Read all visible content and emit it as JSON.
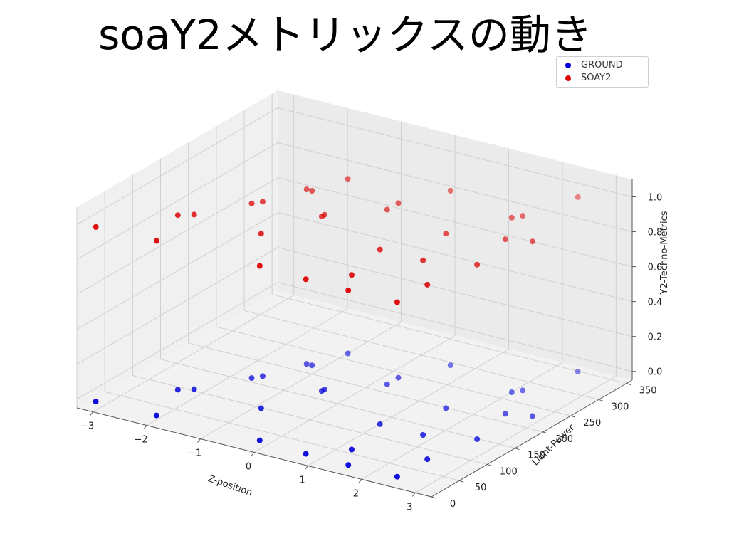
{
  "chart_data": {
    "type": "scatter",
    "title": "soaY2メトリックスの動き",
    "xlabel": "Z-position",
    "ylabel": "Lidht-Power",
    "zlabel": "Y2-Techno-Metrics",
    "xlim": [
      -3.3,
      3.3
    ],
    "ylim": [
      0,
      360
    ],
    "zlim": [
      -0.05,
      1.1
    ],
    "xticks": [
      "−3",
      "−2",
      "−1",
      "0",
      "1",
      "2",
      "3"
    ],
    "yticks": [
      "0",
      "50",
      "100",
      "150",
      "200",
      "250",
      "300",
      "350"
    ],
    "zticks": [
      "0.0",
      "0.2",
      "0.4",
      "0.6",
      "0.8",
      "1.0"
    ],
    "grid": true,
    "projection": "3d",
    "legend_position": "top-right",
    "series": [
      {
        "name": "GROUND",
        "color": "#0000dd",
        "z": 0,
        "points": [
          [
            -3.0,
            5
          ],
          [
            -1.9,
            8
          ],
          [
            -2.2,
            75
          ],
          [
            -2.0,
            85
          ],
          [
            -1.5,
            140
          ],
          [
            -1.4,
            150
          ],
          [
            -0.7,
            80
          ],
          [
            -0.3,
            150
          ],
          [
            -0.3,
            155
          ],
          [
            -1.1,
            200
          ],
          [
            -1.0,
            200
          ],
          [
            -0.8,
            245
          ],
          [
            0.0,
            10
          ],
          [
            0.9,
            6
          ],
          [
            1.7,
            5
          ],
          [
            2.6,
            6
          ],
          [
            1.4,
            40
          ],
          [
            1.2,
            110
          ],
          [
            0.4,
            200
          ],
          [
            0.8,
            275
          ],
          [
            2.6,
            60
          ],
          [
            2.0,
            110
          ],
          [
            2.6,
            200
          ],
          [
            3.0,
            210
          ],
          [
            2.6,
            330
          ],
          [
            2.3,
            260
          ],
          [
            2.2,
            250
          ],
          [
            1.7,
            180
          ],
          [
            2.8,
            130
          ],
          [
            0.4,
            220
          ]
        ]
      },
      {
        "name": "SOAY2",
        "color": "#dd0000",
        "z": 1,
        "points": [
          [
            -3.0,
            5
          ],
          [
            -1.9,
            8
          ],
          [
            -2.2,
            75
          ],
          [
            -2.0,
            85
          ],
          [
            -1.5,
            140
          ],
          [
            -1.4,
            150
          ],
          [
            -0.7,
            80
          ],
          [
            -0.3,
            150
          ],
          [
            -0.3,
            155
          ],
          [
            -1.1,
            200
          ],
          [
            -1.0,
            200
          ],
          [
            -0.8,
            245
          ],
          [
            0.0,
            10
          ],
          [
            0.9,
            6
          ],
          [
            1.7,
            5
          ],
          [
            2.6,
            6
          ],
          [
            1.4,
            40
          ],
          [
            1.2,
            110
          ],
          [
            0.4,
            200
          ],
          [
            0.8,
            275
          ],
          [
            2.6,
            60
          ],
          [
            2.0,
            110
          ],
          [
            2.6,
            200
          ],
          [
            3.0,
            210
          ],
          [
            2.6,
            330
          ],
          [
            2.3,
            260
          ],
          [
            2.2,
            250
          ],
          [
            1.7,
            180
          ],
          [
            2.8,
            130
          ],
          [
            0.4,
            220
          ]
        ]
      }
    ]
  }
}
